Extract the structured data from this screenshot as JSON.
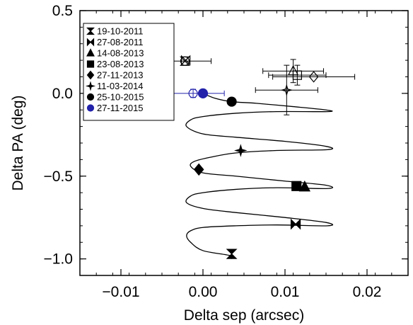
{
  "chart_data": {
    "type": "scatter",
    "title": "",
    "xlabel": "Delta sep (arcsec)",
    "ylabel": "Delta PA (deg)",
    "xlim": [
      -0.015,
      0.025
    ],
    "ylim": [
      -1.1,
      0.5
    ],
    "x_ticks": [
      -0.01,
      0.0,
      0.01,
      0.02
    ],
    "x_tick_labels": [
      "−0.01",
      "0.00",
      "0.01",
      "0.02"
    ],
    "y_ticks": [
      -1.0,
      -0.5,
      0.0,
      0.5
    ],
    "y_tick_labels": [
      "−1.0",
      "−0.5",
      "0.0",
      "0.5"
    ],
    "grid": false,
    "legend_position": "top-left",
    "legend": [
      {
        "label": "19-10-2011",
        "marker": "hourglass",
        "color": "#000000"
      },
      {
        "label": "27-08-2011",
        "marker": "bowtie",
        "color": "#000000"
      },
      {
        "label": "14-08-2013",
        "marker": "triangle",
        "color": "#000000"
      },
      {
        "label": "23-08-2013",
        "marker": "square",
        "color": "#000000"
      },
      {
        "label": "27-11-2013",
        "marker": "diamond",
        "color": "#000000"
      },
      {
        "label": "11-03-2014",
        "marker": "star",
        "color": "#000000"
      },
      {
        "label": "25-10-2015",
        "marker": "circle",
        "color": "#000000"
      },
      {
        "label": "27-11-2015",
        "marker": "circle",
        "color": "#2222aa"
      }
    ],
    "model_points": [
      {
        "label": "19-10-2011",
        "marker": "hourglass",
        "x": 0.0035,
        "y": -0.97,
        "color": "#000000"
      },
      {
        "label": "27-08-2011",
        "marker": "bowtie",
        "x": 0.0113,
        "y": -0.79,
        "color": "#000000"
      },
      {
        "label": "14-08-2013",
        "marker": "triangle",
        "x": 0.0124,
        "y": -0.565,
        "color": "#000000"
      },
      {
        "label": "23-08-2013",
        "marker": "square",
        "x": 0.0114,
        "y": -0.56,
        "color": "#000000"
      },
      {
        "label": "27-11-2013",
        "marker": "diamond",
        "x": -0.0005,
        "y": -0.46,
        "color": "#000000"
      },
      {
        "label": "11-03-2014",
        "marker": "star",
        "x": 0.0046,
        "y": -0.345,
        "color": "#000000"
      },
      {
        "label": "25-10-2015",
        "marker": "circle",
        "x": 0.0035,
        "y": -0.05,
        "color": "#000000"
      },
      {
        "label": "27-11-2015",
        "marker": "circle",
        "x": 0.0,
        "y": 0.0,
        "color": "#2222aa"
      }
    ],
    "observed_points": [
      {
        "label": "19-10-2011",
        "marker": "hourglass",
        "x": -0.0022,
        "y": 0.195,
        "xerr": 0.0,
        "yerr": 0.0,
        "color": "#000000"
      },
      {
        "label": "27-08-2011",
        "marker": "bowtie",
        "x": -0.0021,
        "y": 0.2,
        "xerr": 0.0,
        "yerr": 0.0,
        "color": "#000000"
      },
      {
        "label": "14-08-2013",
        "marker": "triangle",
        "x": 0.011,
        "y": 0.135,
        "xerr": 0.0037,
        "yerr": 0.07,
        "color": "#000000"
      },
      {
        "label": "23-08-2013",
        "marker": "square",
        "x": 0.0115,
        "y": 0.11,
        "xerr": 0.0035,
        "yerr": 0.06,
        "color": "#000000"
      },
      {
        "label": "27-11-2013",
        "marker": "diamond",
        "x": 0.0135,
        "y": 0.1,
        "xerr": 0.005,
        "yerr": 0.0,
        "color": "#000000"
      },
      {
        "label": "11-03-2014",
        "marker": "star",
        "x": 0.0102,
        "y": 0.02,
        "xerr": 0.0038,
        "yerr": 0.15,
        "color": "#000000"
      },
      {
        "label": "25-10-2015",
        "marker": "circle",
        "x": -0.0022,
        "y": 0.195,
        "xerr": 0.0032,
        "yerr": 0.0,
        "color": "#000000"
      },
      {
        "label": "27-11-2015",
        "marker": "circle",
        "x": -0.0012,
        "y": 0.0,
        "xerr": 0.0038,
        "yerr": 0.025,
        "color": "#2222aa"
      }
    ],
    "track": {
      "description_shown": false,
      "points": [
        [
          0.0035,
          -1.0
        ],
        [
          0.0033,
          -0.98
        ],
        [
          0.0,
          -0.95
        ],
        [
          -0.0015,
          -0.9
        ],
        [
          -0.002,
          -0.86
        ],
        [
          -0.0015,
          -0.83
        ],
        [
          0.0,
          -0.81
        ],
        [
          0.004,
          -0.8
        ],
        [
          0.009,
          -0.795
        ],
        [
          0.0152,
          -0.8
        ],
        [
          0.015,
          -0.78
        ],
        [
          0.01,
          -0.75
        ],
        [
          0.004,
          -0.72
        ],
        [
          0.0,
          -0.695
        ],
        [
          -0.002,
          -0.66
        ],
        [
          -0.0015,
          -0.62
        ],
        [
          0.0,
          -0.6
        ],
        [
          0.004,
          -0.58
        ],
        [
          0.009,
          -0.57
        ],
        [
          0.0152,
          -0.575
        ],
        [
          0.015,
          -0.555
        ],
        [
          0.01,
          -0.53
        ],
        [
          0.004,
          -0.5
        ],
        [
          0.0,
          -0.48
        ],
        [
          -0.0015,
          -0.44
        ],
        [
          -0.001,
          -0.41
        ],
        [
          0.001,
          -0.385
        ],
        [
          0.004,
          -0.36
        ],
        [
          0.009,
          -0.345
        ],
        [
          0.0152,
          -0.34
        ],
        [
          0.015,
          -0.32
        ],
        [
          0.01,
          -0.29
        ],
        [
          0.004,
          -0.265
        ],
        [
          0.0,
          -0.245
        ],
        [
          -0.002,
          -0.2
        ],
        [
          -0.0015,
          -0.16
        ],
        [
          0.0,
          -0.14
        ],
        [
          0.004,
          -0.12
        ],
        [
          0.009,
          -0.11
        ],
        [
          0.0152,
          -0.11
        ],
        [
          0.015,
          -0.1
        ],
        [
          0.011,
          -0.08
        ],
        [
          0.0065,
          -0.06
        ],
        [
          0.0035,
          -0.05
        ],
        [
          0.0015,
          -0.03
        ],
        [
          0.0,
          0.0
        ]
      ]
    }
  }
}
